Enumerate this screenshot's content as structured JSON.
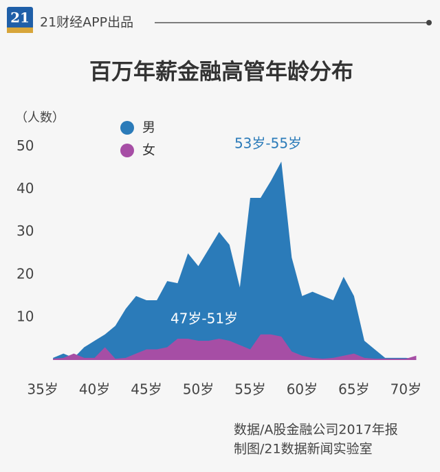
{
  "header": {
    "logo": "21",
    "brand": "21财经APP出品"
  },
  "chart_data": {
    "type": "area",
    "title": "百万年薪金融高管年龄分布",
    "y_label": "（人数）",
    "legend": "upper left",
    "grid": false,
    "x": [
      36,
      37,
      38,
      39,
      40,
      41,
      42,
      43,
      44,
      45,
      46,
      47,
      48,
      49,
      50,
      51,
      52,
      53,
      54,
      55,
      56,
      57,
      58,
      59,
      60,
      61,
      62,
      63,
      64,
      65,
      66,
      67,
      68,
      69,
      70,
      71
    ],
    "series": [
      {
        "name": "男",
        "color": "#2b7bb9",
        "values": [
          0.5,
          1.5,
          0.5,
          3,
          4.5,
          6,
          8,
          12,
          15,
          14,
          14,
          18.5,
          18,
          25,
          22,
          26,
          30,
          27,
          17,
          38,
          38,
          42,
          46.5,
          24,
          15,
          16,
          15,
          14,
          19.5,
          15,
          4.5,
          2.5,
          0.5,
          0.5,
          0.5,
          0.3
        ]
      },
      {
        "name": "女",
        "color": "#a64ea5",
        "values": [
          0.3,
          0.5,
          1.5,
          0.5,
          0.5,
          3,
          0.3,
          0.5,
          1.5,
          2.5,
          2.5,
          3,
          5,
          5,
          4.5,
          4.5,
          5,
          4.5,
          3.5,
          2.5,
          6,
          6,
          5.5,
          2,
          1,
          0.5,
          0.3,
          0.5,
          1,
          1.5,
          0.5,
          0.3,
          0.3,
          0.3,
          0.3,
          1
        ]
      }
    ],
    "xlim": [
      34,
      71.5
    ],
    "xticks": [
      {
        "value": 35,
        "label": "35岁"
      },
      {
        "value": 40,
        "label": "40岁"
      },
      {
        "value": 45,
        "label": "45岁"
      },
      {
        "value": 50,
        "label": "50岁"
      },
      {
        "value": 55,
        "label": "55岁"
      },
      {
        "value": 60,
        "label": "60岁"
      },
      {
        "value": 65,
        "label": "65岁"
      },
      {
        "value": 70,
        "label": "70岁"
      }
    ],
    "ylim": [
      0,
      52
    ],
    "yticks": [
      10,
      20,
      30,
      40,
      50
    ],
    "annotations": [
      "53岁-55岁",
      "47岁-51岁"
    ],
    "source": [
      "数据/A股金融公司2017年报",
      "制图/21数据新闻实验室"
    ]
  }
}
